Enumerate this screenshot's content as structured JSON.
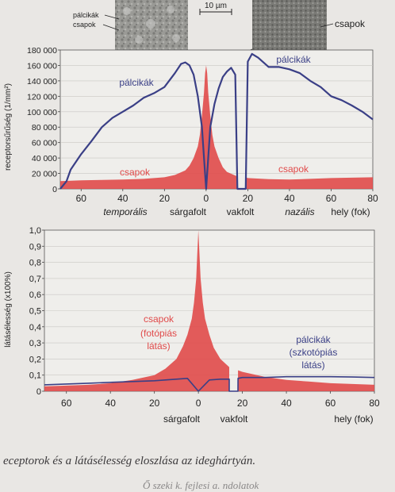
{
  "colors": {
    "rod": "#3a3f86",
    "cone": "#e04a4a",
    "label_dark": "#222222",
    "background": "#e9e7e4"
  },
  "micrographs": {
    "scale_label": "10 µm",
    "left_label_rods": "pálcikák",
    "left_label_cones": "csapok",
    "right_label_cones": "csapok"
  },
  "chart_data": [
    {
      "type": "area",
      "ylabel": "receptorsűrűség (1/mm²)",
      "xlabel": "hely (fok)",
      "x_ticks": [
        "60",
        "40",
        "20",
        "0",
        "20",
        "40",
        "60",
        "80"
      ],
      "y_ticks": [
        "0",
        "20 000",
        "40 000",
        "60 000",
        "80 000",
        "100 000",
        "120 000",
        "140 000",
        "160 000",
        "180 000"
      ],
      "ylim": [
        0,
        180000
      ],
      "xlim": [
        -70,
        80
      ],
      "region_labels": {
        "temporal": "temporális",
        "fovea": "sárgafolt",
        "blind_spot": "vakfolt",
        "nasal": "nazális"
      },
      "blind_spot_range": [
        15,
        19
      ],
      "series": [
        {
          "name": "pálcikák",
          "kind": "line",
          "x": [
            -70,
            -67,
            -65,
            -60,
            -55,
            -50,
            -45,
            -40,
            -35,
            -30,
            -25,
            -20,
            -15,
            -12,
            -10,
            -8,
            -6,
            -4,
            -2,
            -1,
            0,
            1,
            2,
            4,
            6,
            8,
            10,
            12,
            14,
            15,
            19,
            20,
            22,
            25,
            30,
            35,
            40,
            45,
            50,
            55,
            60,
            65,
            70,
            75,
            80
          ],
          "y": [
            0,
            10000,
            25000,
            45000,
            62000,
            80000,
            92000,
            100000,
            108000,
            118000,
            124000,
            132000,
            150000,
            162000,
            164000,
            160000,
            148000,
            120000,
            80000,
            40000,
            0,
            40000,
            80000,
            110000,
            130000,
            145000,
            152000,
            157000,
            148000,
            0,
            0,
            165000,
            175000,
            170000,
            158000,
            158000,
            155000,
            150000,
            140000,
            132000,
            120000,
            115000,
            108000,
            100000,
            90000
          ]
        },
        {
          "name": "csapok",
          "kind": "area",
          "x": [
            -70,
            -60,
            -50,
            -40,
            -30,
            -20,
            -15,
            -10,
            -8,
            -6,
            -4,
            -3,
            -2,
            -1,
            -0.5,
            0,
            0.5,
            1,
            2,
            3,
            4,
            6,
            8,
            10,
            15,
            15.01,
            18.99,
            19,
            20,
            30,
            40,
            50,
            60,
            70,
            80
          ],
          "y": [
            10000,
            11000,
            11500,
            12000,
            13000,
            15000,
            18000,
            24000,
            30000,
            40000,
            55000,
            70000,
            95000,
            125000,
            150000,
            160000,
            150000,
            125000,
            95000,
            70000,
            55000,
            40000,
            28000,
            22000,
            16000,
            0,
            0,
            15000,
            14000,
            12500,
            12000,
            13000,
            14000,
            14500,
            15000
          ]
        }
      ]
    },
    {
      "type": "area",
      "ylabel": "látásélesség (x100%)",
      "xlabel": "hely (fok)",
      "x_ticks": [
        "60",
        "40",
        "20",
        "0",
        "20",
        "40",
        "60",
        "80"
      ],
      "y_ticks": [
        "0",
        "0,1",
        "0,2",
        "0,3",
        "0,4",
        "0,5",
        "0,6",
        "0,7",
        "0,8",
        "0,9",
        "1,0"
      ],
      "ylim": [
        0,
        1.0
      ],
      "xlim": [
        -70,
        80
      ],
      "region_labels": {
        "fovea": "sárgafolt",
        "blind_spot": "vakfolt"
      },
      "blind_spot_range": [
        14,
        18
      ],
      "series": [
        {
          "name": "csapok",
          "subtitle": "(fotópiás látás)",
          "kind": "area",
          "x": [
            -70,
            -60,
            -50,
            -40,
            -30,
            -20,
            -15,
            -10,
            -7,
            -5,
            -3,
            -2,
            -1,
            -0.5,
            0,
            0.5,
            1,
            2,
            3,
            5,
            7,
            10,
            14,
            14.01,
            17.99,
            18,
            20,
            30,
            40,
            50,
            60,
            70,
            80
          ],
          "y": [
            0.03,
            0.035,
            0.04,
            0.05,
            0.07,
            0.1,
            0.14,
            0.2,
            0.28,
            0.35,
            0.45,
            0.55,
            0.7,
            0.85,
            1.0,
            0.85,
            0.7,
            0.55,
            0.45,
            0.35,
            0.27,
            0.2,
            0.15,
            0.0,
            0.0,
            0.13,
            0.12,
            0.09,
            0.07,
            0.06,
            0.05,
            0.045,
            0.04
          ]
        },
        {
          "name": "pálcikák",
          "subtitle": "(szkotópiás látás)",
          "kind": "line",
          "x": [
            -70,
            -60,
            -50,
            -40,
            -30,
            -20,
            -10,
            -5,
            0,
            5,
            10,
            14,
            14.01,
            17.99,
            18,
            20,
            30,
            40,
            50,
            60,
            70,
            80
          ],
          "y": [
            0.04,
            0.045,
            0.05,
            0.055,
            0.06,
            0.065,
            0.075,
            0.08,
            0.0,
            0.07,
            0.075,
            0.075,
            0.0,
            0.0,
            0.08,
            0.085,
            0.085,
            0.09,
            0.09,
            0.09,
            0.088,
            0.085
          ]
        }
      ]
    }
  ],
  "caption": "eceptorok és a látásélesség eloszlása az ideghártyán.",
  "caption_faint": "Ő szeki k. fejlesi a. ndolatok"
}
